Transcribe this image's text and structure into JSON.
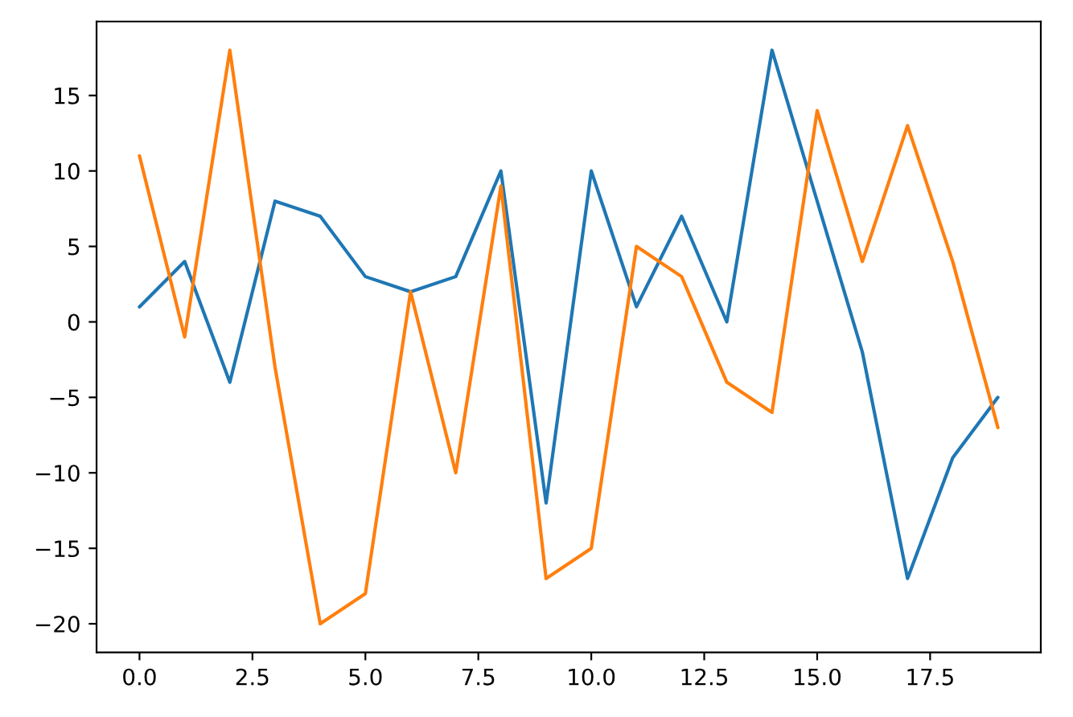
{
  "chart_data": {
    "type": "line",
    "x": [
      0,
      1,
      2,
      3,
      4,
      5,
      6,
      7,
      8,
      9,
      10,
      11,
      12,
      13,
      14,
      15,
      16,
      17,
      18,
      19
    ],
    "series": [
      {
        "color": "#1f77b4",
        "values": [
          1,
          4,
          -4,
          8,
          7,
          3,
          2,
          3,
          10,
          -12,
          10,
          1,
          7,
          0,
          18,
          8,
          -2,
          -17,
          -9,
          -5
        ]
      },
      {
        "color": "#ff7f0e",
        "values": [
          11,
          -1,
          18,
          -3,
          -20,
          -18,
          2,
          -10,
          9,
          -17,
          -15,
          5,
          3,
          -4,
          -6,
          14,
          4,
          13,
          4,
          -7
        ]
      }
    ],
    "xlim": [
      -0.95,
      19.95
    ],
    "ylim": [
      -21.9,
      19.9
    ],
    "xticks": [
      {
        "value": 0,
        "label": "0.0"
      },
      {
        "value": 2.5,
        "label": "2.5"
      },
      {
        "value": 5,
        "label": "5.0"
      },
      {
        "value": 7.5,
        "label": "7.5"
      },
      {
        "value": 10,
        "label": "10.0"
      },
      {
        "value": 12.5,
        "label": "12.5"
      },
      {
        "value": 15,
        "label": "15.0"
      },
      {
        "value": 17.5,
        "label": "17.5"
      }
    ],
    "yticks": [
      {
        "value": -20,
        "label": "−20"
      },
      {
        "value": -15,
        "label": "−15"
      },
      {
        "value": -10,
        "label": "−10"
      },
      {
        "value": -5,
        "label": "−5"
      },
      0,
      5,
      10,
      15
    ],
    "grid": false,
    "legend": false
  }
}
